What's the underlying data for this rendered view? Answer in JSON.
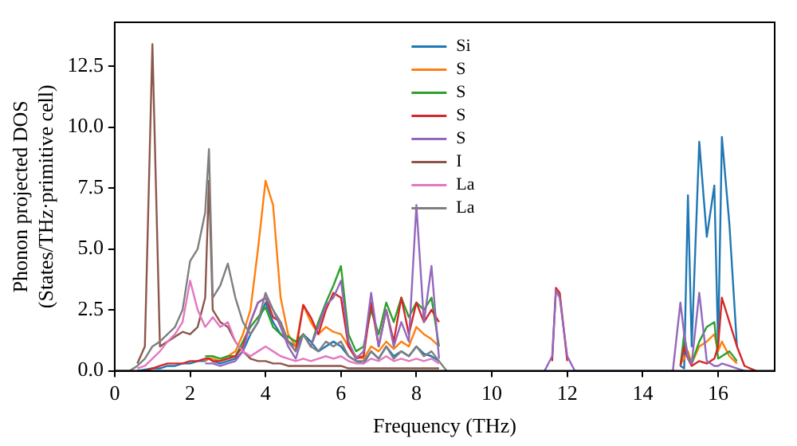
{
  "chart_data": {
    "type": "line",
    "xlabel": "Frequency (THz)",
    "ylabel": "Phonon projected DOS\n(States/THz·primitive cell)",
    "x": [
      0,
      0.2,
      0.4,
      0.6,
      0.8,
      1.0,
      1.2,
      1.4,
      1.6,
      1.8,
      2.0,
      2.2,
      2.4,
      2.5,
      2.6,
      2.8,
      3.0,
      3.2,
      3.4,
      3.6,
      3.8,
      4.0,
      4.2,
      4.4,
      4.6,
      4.8,
      5.0,
      5.2,
      5.4,
      5.6,
      5.8,
      6.0,
      6.2,
      6.4,
      6.6,
      6.8,
      7.0,
      7.2,
      7.4,
      7.6,
      7.8,
      8.0,
      8.2,
      8.4,
      8.6,
      8.8,
      9.0,
      11.4,
      11.6,
      11.7,
      11.8,
      12.0,
      12.2,
      14.8,
      15.0,
      15.1,
      15.2,
      15.3,
      15.5,
      15.7,
      15.9,
      16.0,
      16.1,
      16.3,
      16.5,
      16.7,
      17.0
    ],
    "series": [
      {
        "name": "Si",
        "color": "#1f77b4",
        "values": [
          null,
          null,
          null,
          0,
          0.05,
          0.1,
          0.1,
          0.2,
          0.2,
          0.3,
          0.3,
          0.4,
          0.4,
          0.5,
          0.4,
          0.3,
          0.4,
          0.5,
          0.8,
          1.5,
          2.0,
          2.8,
          2.0,
          1.5,
          1.2,
          1.0,
          1.5,
          1.2,
          0.8,
          1.0,
          1.2,
          1.0,
          0.6,
          0.4,
          0.3,
          0.8,
          0.5,
          1.0,
          0.6,
          0.8,
          0.6,
          1.0,
          0.7,
          0.6,
          0.4,
          null,
          null,
          null,
          null,
          null,
          null,
          null,
          null,
          null,
          0.2,
          0.1,
          7.2,
          1.0,
          9.4,
          5.5,
          7.6,
          1.0,
          9.6,
          6.0,
          1.0,
          null,
          null
        ]
      },
      {
        "name": "S",
        "color": "#ff7f0e",
        "values": [
          null,
          null,
          null,
          null,
          null,
          null,
          null,
          null,
          null,
          null,
          null,
          null,
          0.4,
          0.5,
          0.5,
          0.4,
          0.6,
          0.8,
          1.5,
          2.5,
          5.0,
          7.8,
          6.8,
          3.0,
          1.5,
          1.0,
          2.7,
          2.0,
          1.5,
          1.8,
          1.6,
          1.5,
          1.0,
          0.6,
          0.5,
          1.0,
          0.8,
          1.2,
          0.9,
          1.2,
          1.0,
          1.8,
          1.5,
          1.3,
          1.0,
          null,
          null,
          null,
          null,
          null,
          null,
          null,
          null,
          null,
          0.3,
          0.5,
          0.8,
          0.3,
          1.0,
          1.2,
          1.5,
          0.8,
          1.2,
          0.6,
          0.3,
          null,
          null
        ]
      },
      {
        "name": "S",
        "color": "#2ca02c",
        "values": [
          null,
          null,
          null,
          null,
          null,
          null,
          null,
          null,
          null,
          null,
          null,
          null,
          0.6,
          0.6,
          0.6,
          0.5,
          0.6,
          0.6,
          1.2,
          1.8,
          2.2,
          2.6,
          1.8,
          1.5,
          1.4,
          1.2,
          1.5,
          1.0,
          2.0,
          2.8,
          3.5,
          4.3,
          1.5,
          0.8,
          1.0,
          2.5,
          1.5,
          2.8,
          2.0,
          3.0,
          2.2,
          2.8,
          2.5,
          3.0,
          1.0,
          null,
          null,
          null,
          null,
          null,
          null,
          null,
          null,
          null,
          0.2,
          1.5,
          0.6,
          0.3,
          1.2,
          1.8,
          2.0,
          0.5,
          0.6,
          0.8,
          0.4,
          null,
          null
        ]
      },
      {
        "name": "S",
        "color": "#d62728",
        "values": [
          null,
          null,
          null,
          null,
          0,
          0.1,
          0.2,
          0.3,
          0.3,
          0.3,
          0.4,
          0.4,
          0.5,
          0.5,
          0.4,
          0.4,
          0.5,
          0.6,
          1.0,
          2.0,
          2.8,
          3.0,
          2.2,
          2.0,
          1.2,
          0.8,
          2.7,
          2.2,
          1.5,
          2.5,
          3.2,
          3.0,
          1.0,
          0.5,
          0.6,
          2.8,
          1.0,
          2.5,
          1.2,
          3.0,
          1.5,
          2.8,
          2.0,
          2.5,
          2.0,
          null,
          null,
          null,
          0.4,
          3.4,
          3.2,
          0.4,
          null,
          null,
          0.2,
          1.0,
          0.5,
          0.2,
          0.4,
          0.3,
          0.5,
          1.0,
          3.0,
          2.0,
          1.0,
          0.2,
          0
        ]
      },
      {
        "name": "S",
        "color": "#9467bd",
        "values": [
          null,
          null,
          null,
          null,
          null,
          null,
          null,
          null,
          null,
          null,
          null,
          null,
          0.3,
          0.3,
          0.3,
          0.2,
          0.3,
          0.4,
          0.8,
          2.0,
          2.8,
          3.0,
          2.5,
          1.8,
          1.0,
          0.5,
          1.5,
          1.0,
          1.8,
          2.7,
          3.0,
          3.7,
          1.2,
          0.5,
          0.8,
          3.2,
          1.0,
          2.5,
          1.0,
          2.0,
          1.2,
          6.8,
          2.0,
          4.3,
          0.5,
          null,
          null,
          0,
          0.6,
          3.3,
          3.0,
          0.6,
          0,
          0,
          2.8,
          1.5,
          0.5,
          0.3,
          3.2,
          0.4,
          0.2,
          0.2,
          0.3,
          0.2,
          0.1,
          0,
          null
        ]
      },
      {
        "name": "I",
        "color": "#8c564b",
        "values": [
          null,
          null,
          null,
          0.3,
          1.0,
          13.4,
          1.0,
          1.2,
          1.4,
          1.6,
          1.5,
          1.8,
          3.0,
          7.8,
          2.5,
          2.0,
          1.8,
          1.2,
          0.8,
          0.5,
          0.4,
          0.4,
          0.3,
          0.3,
          0.2,
          0.2,
          0.2,
          0.2,
          0.2,
          0.2,
          0.2,
          0.2,
          0.1,
          0.1,
          0.1,
          0.1,
          0.1,
          0.1,
          0.1,
          0.1,
          0.1,
          0.1,
          0.1,
          0.1,
          0.1,
          null,
          null,
          null,
          null,
          null,
          null,
          null,
          null,
          null,
          null,
          null,
          null,
          null,
          null,
          null,
          null,
          null,
          null,
          null,
          null,
          null,
          null
        ]
      },
      {
        "name": "La",
        "color": "#e377c2",
        "values": [
          null,
          null,
          null,
          0.1,
          0.2,
          0.5,
          0.8,
          1.2,
          1.5,
          2.0,
          3.7,
          2.5,
          1.8,
          2.0,
          2.2,
          1.8,
          2.0,
          1.2,
          0.8,
          0.6,
          0.8,
          1.0,
          0.8,
          0.6,
          0.5,
          0.4,
          0.5,
          0.4,
          0.5,
          0.6,
          0.5,
          0.6,
          0.4,
          0.3,
          0.3,
          0.5,
          0.4,
          0.6,
          0.4,
          0.5,
          0.4,
          0.5,
          0.4,
          0.5,
          0.3,
          null,
          null,
          null,
          null,
          null,
          null,
          null,
          null,
          null,
          null,
          null,
          null,
          null,
          null,
          null,
          null,
          null,
          null,
          null,
          null,
          null,
          null
        ]
      },
      {
        "name": "La",
        "color": "#7f7f7f",
        "values": [
          0,
          0,
          0,
          0.2,
          0.5,
          1.0,
          1.2,
          1.5,
          1.8,
          2.5,
          4.5,
          5.0,
          6.5,
          9.1,
          3.0,
          3.5,
          4.4,
          3.0,
          2.0,
          1.5,
          2.0,
          3.2,
          2.5,
          2.0,
          1.2,
          0.8,
          1.5,
          1.0,
          0.8,
          1.2,
          1.0,
          1.2,
          0.6,
          0.4,
          0.4,
          0.8,
          0.5,
          1.0,
          0.5,
          0.8,
          0.6,
          1.0,
          0.6,
          0.8,
          0.4,
          0,
          null,
          null,
          null,
          null,
          null,
          null,
          null,
          null,
          null,
          null,
          null,
          null,
          null,
          null,
          null,
          null,
          null,
          null,
          null,
          null,
          null
        ]
      }
    ],
    "xlim": [
      0,
      17.5
    ],
    "xticks": [
      0,
      2,
      4,
      6,
      8,
      10,
      12,
      14,
      16
    ],
    "ylim": [
      0,
      14.3
    ],
    "yticks": [
      {
        "value": 0,
        "label": "0.0"
      },
      {
        "value": 2.5,
        "label": "2.5"
      },
      {
        "value": 5,
        "label": "5.0"
      },
      {
        "value": 7.5,
        "label": "7.5"
      },
      {
        "value": 10,
        "label": "10.0"
      },
      {
        "value": 12.5,
        "label": "12.5"
      }
    ],
    "legend": "top",
    "grid": false
  }
}
